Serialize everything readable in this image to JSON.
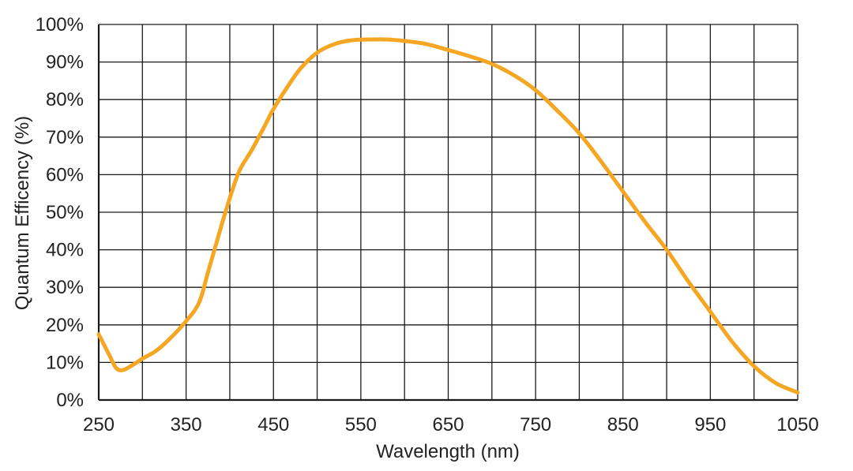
{
  "chart_data": {
    "type": "line",
    "xlabel": "Wavelength (nm)",
    "ylabel": "Quantum Efficency (%)",
    "xlim": [
      250,
      1050
    ],
    "ylim": [
      0,
      100
    ],
    "x_ticks": [
      250,
      300,
      350,
      400,
      450,
      500,
      550,
      600,
      650,
      700,
      750,
      800,
      850,
      900,
      950,
      1000,
      1050
    ],
    "x_tick_labels": [
      "250",
      "350",
      "450",
      "550",
      "650",
      "750",
      "850",
      "950",
      "1050"
    ],
    "x_tick_label_values": [
      250,
      350,
      450,
      550,
      650,
      750,
      850,
      950,
      1050
    ],
    "y_ticks": [
      0,
      10,
      20,
      30,
      40,
      50,
      60,
      70,
      80,
      90,
      100
    ],
    "y_tick_labels": [
      "0%",
      "10%",
      "20%",
      "30%",
      "40%",
      "50%",
      "60%",
      "70%",
      "80%",
      "90%",
      "100%"
    ],
    "grid": true,
    "series": [
      {
        "color": "#F5A623",
        "x": [
          250,
          262,
          270,
          278,
          290,
          300,
          315,
          330,
          350,
          365,
          375,
          385,
          395,
          410,
          425,
          440,
          450,
          465,
          480,
          500,
          520,
          540,
          560,
          580,
          600,
          625,
          650,
          675,
          700,
          725,
          750,
          775,
          800,
          825,
          850,
          875,
          900,
          925,
          950,
          975,
          1000,
          1025,
          1050
        ],
        "y": [
          17.5,
          12,
          8.5,
          8,
          9.5,
          11,
          13,
          16,
          21,
          26,
          34,
          42,
          50,
          60.5,
          66.5,
          73,
          77.5,
          83,
          88,
          92.5,
          94.8,
          95.8,
          96,
          96,
          95.6,
          94.8,
          93.2,
          91.5,
          89.5,
          86.5,
          82.5,
          77,
          71,
          63.5,
          55.5,
          47.5,
          40,
          31.5,
          23.5,
          15.5,
          9,
          4.5,
          2
        ]
      }
    ]
  }
}
